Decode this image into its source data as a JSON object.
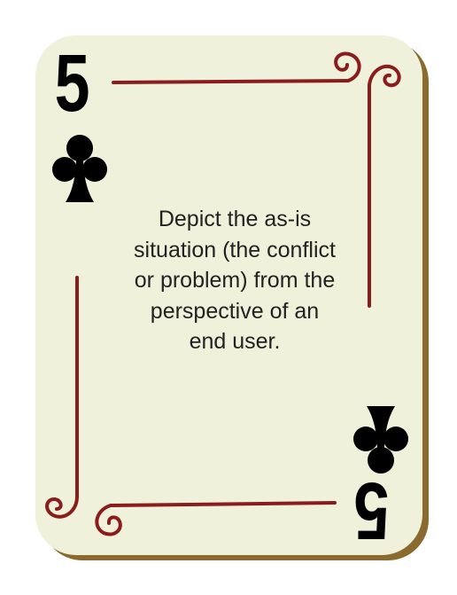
{
  "card": {
    "rank": "5",
    "suit_icon": "club-icon",
    "prompt": "Depict the as-is situation (the conflict or problem) from the perspective of an end user."
  },
  "colors": {
    "card_face": "#eff1da",
    "card_shadow": "#8a6a2e",
    "ornament": "#8b1c1c",
    "ink": "#000000",
    "text": "#222222"
  }
}
